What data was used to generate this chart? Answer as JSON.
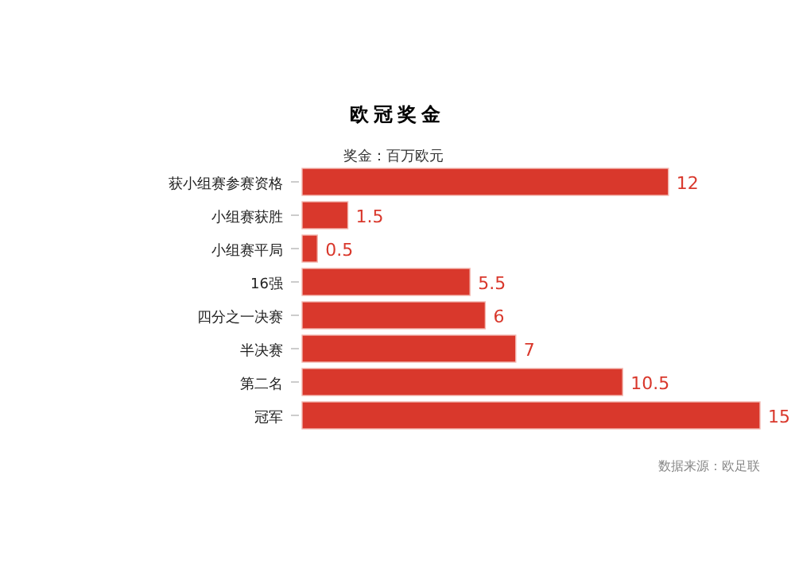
{
  "chart_data": {
    "type": "bar",
    "orientation": "horizontal",
    "title": "欧冠奖金",
    "subtitle": "奖金：百万欧元",
    "categories": [
      "获小组赛参赛资格",
      "小组赛获胜",
      "小组赛平局",
      "16强",
      "四分之一决赛",
      "半决赛",
      "第二名",
      "冠军"
    ],
    "values": [
      12,
      1.5,
      0.5,
      5.5,
      6,
      7,
      10.5,
      15
    ],
    "color": "#d9382c",
    "data_labels": true,
    "annotations": [
      "数据来源：欧足联"
    ]
  }
}
